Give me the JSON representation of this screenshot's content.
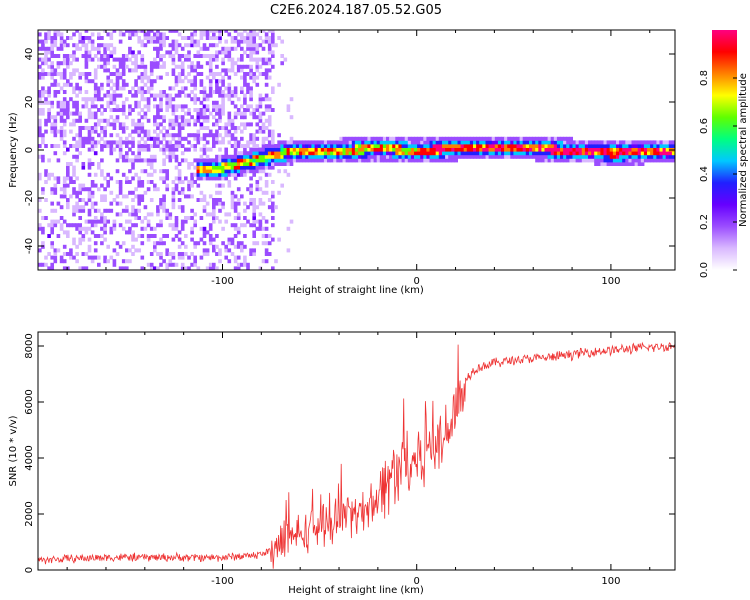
{
  "figure": {
    "title": "C2E6.2024.187.05.52.G05"
  },
  "chart_data": [
    {
      "type": "heatmap",
      "xlabel": "Height of straight line (km)",
      "ylabel": "Frequency (Hz)",
      "xlim": [
        -195,
        133
      ],
      "ylim": [
        -50,
        50
      ],
      "x_ticks": [
        -100,
        0,
        100
      ],
      "y_ticks": [
        -40,
        -20,
        0,
        20,
        40
      ],
      "colorbar": {
        "label": "Normalized spectral amplitude",
        "range": [
          0.0,
          1.0
        ],
        "ticks": [
          0.0,
          0.2,
          0.4,
          0.6,
          0.8
        ],
        "colors": [
          "#ffffff",
          "#d9b8ff",
          "#9b4dff",
          "#6600ff",
          "#2020ff",
          "#00c8ff",
          "#00ff80",
          "#60ff00",
          "#ffff00",
          "#ff8000",
          "#ff0000",
          "#ff0080"
        ]
      },
      "features": {
        "noise_region_x": [
          -195,
          -75
        ],
        "noise_region_y": [
          -50,
          50
        ],
        "signal_line": [
          {
            "x": -110,
            "freq": -9
          },
          {
            "x": -100,
            "freq": -8
          },
          {
            "x": -90,
            "freq": -6
          },
          {
            "x": -80,
            "freq": -4
          },
          {
            "x": -70,
            "freq": -2
          },
          {
            "x": -60,
            "freq": -1
          },
          {
            "x": -40,
            "freq": -1
          },
          {
            "x": -20,
            "freq": 0
          },
          {
            "x": 0,
            "freq": -1
          },
          {
            "x": 20,
            "freq": 0
          },
          {
            "x": 40,
            "freq": 0
          },
          {
            "x": 60,
            "freq": 0
          },
          {
            "x": 80,
            "freq": -1
          },
          {
            "x": 100,
            "freq": -2
          },
          {
            "x": 133,
            "freq": -1
          }
        ]
      }
    },
    {
      "type": "line",
      "xlabel": "Height of straight line (km)",
      "ylabel": "SNR (10 * v/v)",
      "xlim": [
        -195,
        133
      ],
      "ylim": [
        0,
        8500
      ],
      "x_ticks": [
        -100,
        0,
        100
      ],
      "y_ticks": [
        0,
        2000,
        4000,
        6000,
        8000
      ],
      "line_color": "#ee3333",
      "series": [
        {
          "x": [
            -195,
            -180,
            -160,
            -140,
            -120,
            -100,
            -90,
            -80,
            -75,
            -70,
            -60,
            -50,
            -40,
            -30,
            -20,
            -15,
            -10,
            -5,
            0,
            5,
            10,
            15,
            20,
            25,
            30,
            40,
            50,
            60,
            70,
            80,
            90,
            100,
            110,
            120,
            133
          ],
          "values": [
            350,
            400,
            450,
            450,
            450,
            450,
            500,
            550,
            700,
            900,
            1300,
            1600,
            1800,
            2000,
            2600,
            3200,
            3600,
            3800,
            4000,
            4300,
            4500,
            4900,
            6000,
            6800,
            7200,
            7400,
            7500,
            7550,
            7600,
            7700,
            7800,
            7850,
            7900,
            7950,
            8000
          ]
        }
      ]
    }
  ]
}
